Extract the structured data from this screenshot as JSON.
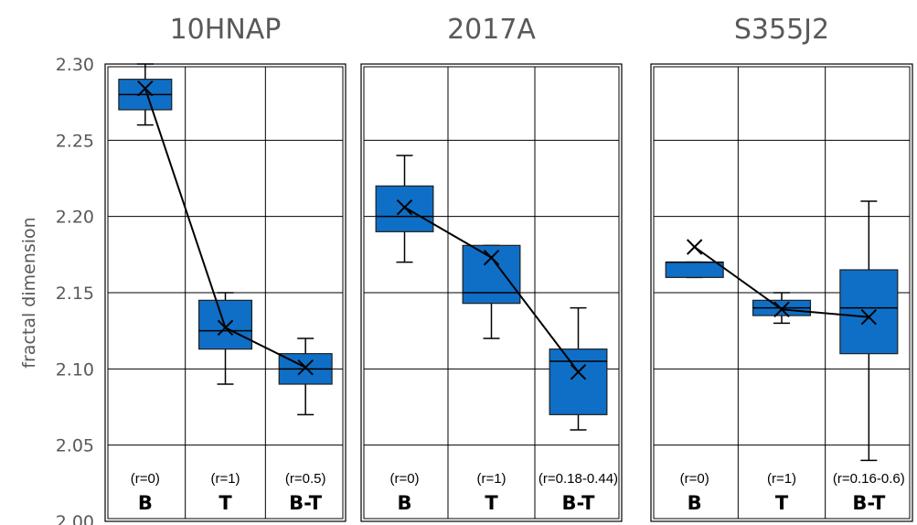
{
  "chart_data": {
    "type": "box",
    "ylabel": "fractal dimension",
    "ylim": [
      2.0,
      2.3
    ],
    "yticks": [
      "2.00",
      "2.05",
      "2.10",
      "2.15",
      "2.20",
      "2.25",
      "2.30"
    ],
    "grid": true,
    "colors": {
      "box_fill": "#0f6fc6",
      "box_edge": "#1f1f1f",
      "line": "#000000",
      "text": "#595959"
    },
    "panels": [
      {
        "title": "10HNAP",
        "categories": [
          "B",
          "T",
          "B-T"
        ],
        "r_labels": [
          "(r=0)",
          "(r=1)",
          "(r=0.5)"
        ],
        "boxes": [
          {
            "whisker_low": 2.26,
            "q1": 2.27,
            "median": 2.28,
            "q3": 2.29,
            "whisker_high": 2.3,
            "mean": 2.284
          },
          {
            "whisker_low": 2.09,
            "q1": 2.113,
            "median": 2.125,
            "q3": 2.145,
            "whisker_high": 2.15,
            "mean": 2.127
          },
          {
            "whisker_low": 2.07,
            "q1": 2.09,
            "median": 2.1,
            "q3": 2.11,
            "whisker_high": 2.12,
            "mean": 2.101
          }
        ]
      },
      {
        "title": "2017A",
        "categories": [
          "B",
          "T",
          "B-T"
        ],
        "r_labels": [
          "(r=0)",
          "(r=1)",
          "(r=0.18-0.44)"
        ],
        "boxes": [
          {
            "whisker_low": 2.17,
            "q1": 2.19,
            "median": 2.2,
            "q3": 2.22,
            "whisker_high": 2.24,
            "mean": 2.206
          },
          {
            "whisker_low": 2.12,
            "q1": 2.143,
            "median": 2.15,
            "q3": 2.181,
            "whisker_high": 2.181,
            "mean": 2.173
          },
          {
            "whisker_low": 2.06,
            "q1": 2.07,
            "median": 2.105,
            "q3": 2.113,
            "whisker_high": 2.14,
            "mean": 2.098
          }
        ]
      },
      {
        "title": "S355J2",
        "categories": [
          "B",
          "T",
          "B-T"
        ],
        "r_labels": [
          "(r=0)",
          "(r=1)",
          "(r=0.16-0.6)"
        ],
        "boxes": [
          {
            "whisker_low": 2.16,
            "q1": 2.16,
            "median": 2.17,
            "q3": 2.17,
            "whisker_high": 2.17,
            "mean": 2.18
          },
          {
            "whisker_low": 2.13,
            "q1": 2.135,
            "median": 2.14,
            "q3": 2.145,
            "whisker_high": 2.15,
            "mean": 2.139
          },
          {
            "whisker_low": 2.04,
            "q1": 2.11,
            "median": 2.14,
            "q3": 2.165,
            "whisker_high": 2.21,
            "mean": 2.134
          }
        ]
      }
    ]
  }
}
